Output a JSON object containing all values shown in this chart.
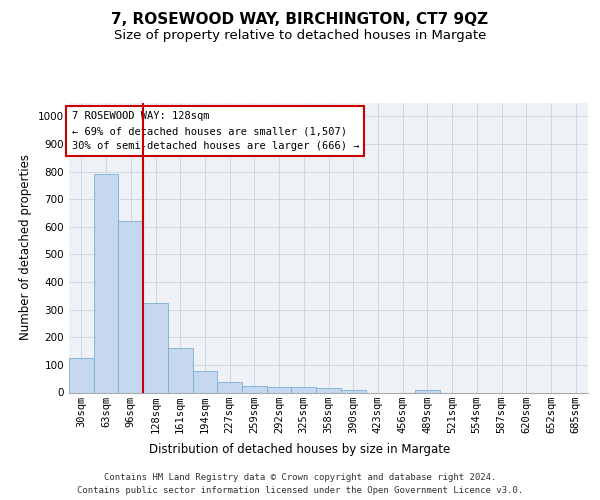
{
  "title": "7, ROSEWOOD WAY, BIRCHINGTON, CT7 9QZ",
  "subtitle": "Size of property relative to detached houses in Margate",
  "xlabel": "Distribution of detached houses by size in Margate",
  "ylabel": "Number of detached properties",
  "categories": [
    "30sqm",
    "63sqm",
    "96sqm",
    "128sqm",
    "161sqm",
    "194sqm",
    "227sqm",
    "259sqm",
    "292sqm",
    "325sqm",
    "358sqm",
    "390sqm",
    "423sqm",
    "456sqm",
    "489sqm",
    "521sqm",
    "554sqm",
    "587sqm",
    "620sqm",
    "652sqm",
    "685sqm"
  ],
  "values": [
    125,
    790,
    620,
    325,
    160,
    78,
    38,
    25,
    20,
    20,
    15,
    8,
    0,
    0,
    8,
    0,
    0,
    0,
    0,
    0,
    0
  ],
  "bar_color": "#c5d8f0",
  "bar_edge_color": "#7aadd4",
  "vline_color": "#cc0000",
  "annotation_text": "7 ROSEWOOD WAY: 128sqm\n← 69% of detached houses are smaller (1,507)\n30% of semi-detached houses are larger (666) →",
  "annotation_box_color": "#ffffff",
  "annotation_box_edge_color": "#cc0000",
  "ylim": [
    0,
    1050
  ],
  "yticks": [
    0,
    100,
    200,
    300,
    400,
    500,
    600,
    700,
    800,
    900,
    1000
  ],
  "grid_color": "#c8d4e0",
  "background_color": "#eef2f7",
  "footer_line1": "Contains HM Land Registry data © Crown copyright and database right 2024.",
  "footer_line2": "Contains public sector information licensed under the Open Government Licence v3.0.",
  "title_fontsize": 11,
  "subtitle_fontsize": 9.5,
  "axis_label_fontsize": 8.5,
  "tick_fontsize": 7.5,
  "footer_fontsize": 6.5
}
